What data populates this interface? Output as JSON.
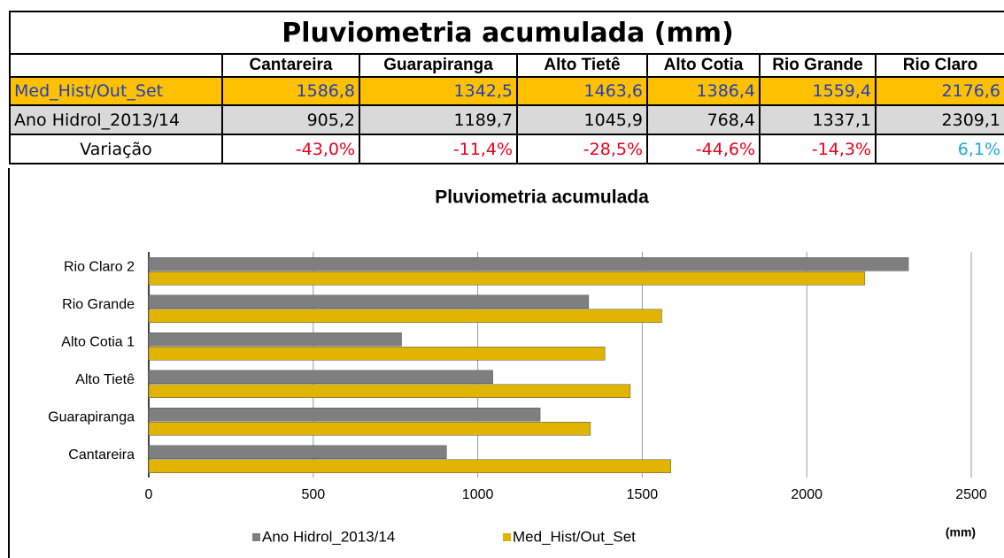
{
  "table": {
    "title": "Pluviometria acumulada (mm)",
    "header": [
      "Cantareira",
      "Guarapiranga",
      "Alto Tietê",
      "Alto Cotia",
      "Rio Grande",
      "Rio Claro"
    ],
    "rows": [
      [
        "Med_Hist/Out_Set",
        "1586,8",
        "1342,5",
        "1463,6",
        "1386,4",
        "1559,4",
        "2176,6"
      ],
      [
        "Ano Hidrol_2013/14",
        "905,2",
        "1189,7",
        "1045,9",
        "768,4",
        "1337,1",
        "2309,1"
      ],
      [
        "Variação",
        "-43,0%",
        "-11,4%",
        "-28,5%",
        "-44,6%",
        "-14,3%",
        "6,1%"
      ]
    ]
  },
  "chart_data": {
    "type": "bar",
    "orientation": "horizontal",
    "title": "Pluviometria acumulada",
    "categories": [
      "Cantareira",
      "Guarapiranga",
      "Alto Tietê",
      "Alto Cotia 1",
      "Rio Grande",
      "Rio Claro 2"
    ],
    "series": [
      {
        "name": "Ano Hidrol_2013/14",
        "color": "#7f7f7f",
        "values": [
          905.2,
          1189.7,
          1045.9,
          768.4,
          1337.1,
          2309.1
        ]
      },
      {
        "name": "Med_Hist/Out_Set",
        "color": "#e0b400",
        "values": [
          1586.8,
          1342.5,
          1463.6,
          1386.4,
          1559.4,
          2176.6
        ]
      }
    ],
    "xlabel": "(mm)",
    "xlim": [
      0,
      2500
    ],
    "xticks": [
      0,
      500,
      1000,
      1500,
      2000,
      2500
    ],
    "grid": true,
    "legend": "bottom"
  }
}
